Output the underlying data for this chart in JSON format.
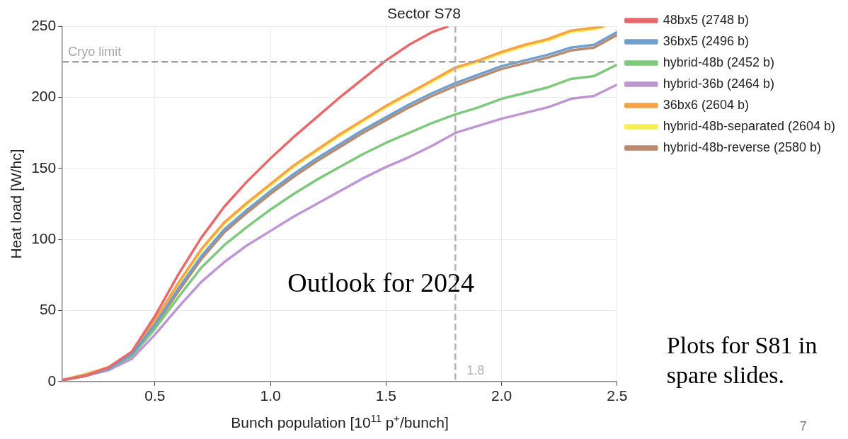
{
  "chart_data": {
    "type": "line",
    "title": "Sector S78",
    "xlabel": "Bunch population [10$^{11}$ p$^{+}$/bunch]",
    "ylabel": "Heat load [W/hc]",
    "x": [
      0.1,
      0.2,
      0.3,
      0.4,
      0.5,
      0.6,
      0.7,
      0.8,
      0.9,
      1.0,
      1.1,
      1.2,
      1.3,
      1.4,
      1.5,
      1.6,
      1.7,
      1.8,
      1.9,
      2.0,
      2.1,
      2.2,
      2.3,
      2.4,
      2.5
    ],
    "xlim": [
      0.1,
      2.5
    ],
    "xticks": [
      0.5,
      {
        "value": 1,
        "label": "1.0"
      },
      1.5,
      {
        "value": 2,
        "label": "2.0"
      },
      2.5
    ],
    "ylim": [
      0,
      250
    ],
    "yticks": [
      0,
      50,
      100,
      150,
      200,
      250
    ],
    "grid": true,
    "legend": "right",
    "marker": "none",
    "line_style": "solid",
    "series": [
      {
        "name": "48bx5 (2748 b)",
        "color": "#e8696b",
        "x": [
          0.1,
          0.2,
          0.3,
          0.4,
          0.5,
          0.6,
          0.7,
          0.8,
          0.9,
          1.0,
          1.1,
          1.2,
          1.3,
          1.4,
          1.5,
          1.6,
          1.7,
          1.77
        ],
        "values": [
          1,
          4,
          10,
          21,
          46,
          75,
          101,
          123,
          141,
          157,
          172,
          186,
          200,
          213,
          226,
          237,
          246,
          250
        ]
      },
      {
        "name": "36bx5 (2496 b)",
        "color": "#6f9fce",
        "values": [
          1,
          4,
          9,
          19,
          40,
          65,
          88,
          107,
          121,
          134,
          146,
          157,
          167,
          177,
          186,
          195,
          203,
          210,
          216,
          222,
          226,
          230,
          235,
          237,
          246
        ]
      },
      {
        "name": "hybrid-48b (2452 b)",
        "color": "#7fc97f",
        "values": [
          1,
          4,
          9,
          18,
          37,
          59,
          80,
          96,
          109,
          121,
          132,
          142,
          151,
          160,
          168,
          175,
          182,
          188,
          193,
          199,
          203,
          207,
          213,
          215,
          223
        ]
      },
      {
        "name": "hybrid-36b (2464 b)",
        "color": "#be96d4",
        "values": [
          1,
          4,
          8,
          16,
          33,
          52,
          70,
          84,
          96,
          106,
          116,
          125,
          134,
          143,
          151,
          158,
          166,
          175,
          180,
          185,
          189,
          193,
          199,
          201,
          209
        ]
      },
      {
        "name": "36bx6 (2604 b)",
        "color": "#f5a34a",
        "x": [
          0.1,
          0.2,
          0.3,
          0.4,
          0.5,
          0.6,
          0.7,
          0.8,
          0.9,
          1.0,
          1.1,
          1.2,
          1.3,
          1.4,
          1.5,
          1.6,
          1.7,
          1.8,
          1.9,
          2.0,
          2.1,
          2.2,
          2.3,
          2.4,
          2.44
        ],
        "values": [
          1,
          5,
          10,
          20,
          43,
          69,
          93,
          112,
          126,
          139,
          152,
          163,
          174,
          184,
          194,
          203,
          212,
          221,
          226,
          232,
          237,
          241,
          247,
          249,
          250
        ]
      },
      {
        "name": "hybrid-48b-separated (2604 b)",
        "color": "#f8ee52",
        "x": [
          0.1,
          0.2,
          0.3,
          0.4,
          0.5,
          0.6,
          0.7,
          0.8,
          0.9,
          1.0,
          1.1,
          1.2,
          1.3,
          1.4,
          1.5,
          1.6,
          1.7,
          1.8,
          1.9,
          2.0,
          2.1,
          2.2,
          2.3,
          2.4,
          2.45
        ],
        "values": [
          1,
          5,
          10,
          20,
          42,
          68,
          92,
          111,
          125,
          138,
          151,
          162,
          173,
          183,
          193,
          202,
          211,
          220,
          225,
          231,
          236,
          240,
          246,
          248,
          250
        ]
      },
      {
        "name": "hybrid-48b-reverse (2580 b)",
        "color": "#b98b6e",
        "values": [
          1,
          4,
          9,
          19,
          39,
          63,
          86,
          105,
          119,
          132,
          144,
          155,
          165,
          175,
          184,
          193,
          201,
          208,
          214,
          220,
          224,
          228,
          233,
          235,
          244
        ]
      }
    ],
    "ref_lines": [
      {
        "axis": "y",
        "value": 225,
        "label": "Cryo limit",
        "color": "#a0a0a0",
        "line_style": "dashed"
      },
      {
        "axis": "x",
        "value": 1.8,
        "label": "1.8",
        "color": "#b4b4b4",
        "line_style": "dashed"
      }
    ],
    "annotations": [
      "Outlook for 2024",
      "Plots for S81 in spare slides.",
      "7"
    ]
  }
}
